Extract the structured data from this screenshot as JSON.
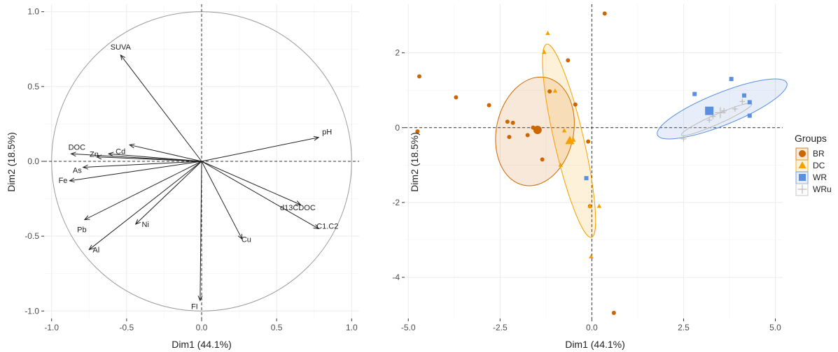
{
  "chart_data": [
    {
      "type": "scatter",
      "subtype": "pca-variable-correlation-circle",
      "xlabel": "Dim1 (44.1%)",
      "ylabel": "Dim2 (18.5%)",
      "xlim": [
        -1.05,
        1.05
      ],
      "ylim": [
        -1.05,
        1.05
      ],
      "xticks": [
        -1.0,
        -0.5,
        0.0,
        0.5,
        1.0
      ],
      "yticks": [
        -1.0,
        -0.5,
        0.0,
        0.5,
        1.0
      ],
      "xtick_labels": [
        "-1.0",
        "-0.5",
        "0.0",
        "0.5",
        "1.0"
      ],
      "ytick_labels": [
        "-1.0",
        "-0.5",
        "0.0",
        "0.5",
        "1.0"
      ],
      "grid": true,
      "unit_circle": true,
      "vectors": [
        {
          "name": "SUVA",
          "x": -0.54,
          "y": 0.71
        },
        {
          "name": "pH",
          "x": 0.78,
          "y": 0.16
        },
        {
          "name": "DOC",
          "x": -0.87,
          "y": 0.05
        },
        {
          "name": "Cd",
          "x": -0.62,
          "y": 0.05
        },
        {
          "name": "Zn",
          "x": -0.7,
          "y": 0.03
        },
        {
          "name": "As",
          "x": -0.79,
          "y": -0.04
        },
        {
          "name": "Fe",
          "x": -0.88,
          "y": -0.13
        },
        {
          "name": "Pb",
          "x": -0.78,
          "y": -0.39
        },
        {
          "name": "Ni",
          "x": -0.44,
          "y": -0.42
        },
        {
          "name": "Al",
          "x": -0.75,
          "y": -0.59
        },
        {
          "name": "FI",
          "x": -0.01,
          "y": -0.93
        },
        {
          "name": "Cu",
          "x": 0.27,
          "y": -0.52
        },
        {
          "name": "d13CDOC",
          "x": 0.66,
          "y": -0.29
        },
        {
          "name": "C1.C2",
          "x": 0.78,
          "y": -0.45
        }
      ],
      "extra_arrow": {
        "x": -0.48,
        "y": 0.11
      }
    },
    {
      "type": "scatter",
      "subtype": "pca-individuals",
      "xlabel": "Dim1 (44.1%)",
      "ylabel": "Dim2 (18.5%)",
      "xlim": [
        -5.1,
        5.2
      ],
      "ylim": [
        -5.1,
        3.3
      ],
      "xticks": [
        -5.0,
        -2.5,
        0.0,
        2.5,
        5.0
      ],
      "yticks": [
        -4,
        -2,
        0,
        2
      ],
      "xtick_labels": [
        "-5.0",
        "-2.5",
        "0.0",
        "2.5",
        "5.0"
      ],
      "ytick_labels": [
        "-4",
        "-2",
        "0",
        "2"
      ],
      "grid": true,
      "legend": {
        "title": "Groups",
        "position": "right"
      },
      "series": [
        {
          "name": "BR",
          "color": "#CC6600",
          "marker": "circle",
          "points": [
            [
              -4.7,
              1.37
            ],
            [
              -4.75,
              -0.1
            ],
            [
              -3.7,
              0.81
            ],
            [
              -2.8,
              0.6
            ],
            [
              -2.3,
              0.16
            ],
            [
              -2.15,
              0.13
            ],
            [
              -2.25,
              -0.25
            ],
            [
              -1.75,
              -0.2
            ],
            [
              -1.6,
              0.0
            ],
            [
              -1.35,
              -0.85
            ],
            [
              -1.15,
              0.97
            ],
            [
              -0.65,
              1.8
            ],
            [
              -0.45,
              0.62
            ],
            [
              -0.1,
              -0.37
            ],
            [
              -0.05,
              -2.1
            ],
            [
              0.35,
              3.05
            ],
            [
              0.6,
              -4.95
            ]
          ],
          "centroid": [
            -1.48,
            -0.06
          ],
          "ellipse": {
            "cx": -1.55,
            "cy": -0.1,
            "rx": 1.05,
            "ry": 1.47,
            "angle": 12
          }
        },
        {
          "name": "DC",
          "color": "#F5A000",
          "marker": "triangle",
          "points": [
            [
              -1.2,
              2.52
            ],
            [
              -1.3,
              2.02
            ],
            [
              -1.0,
              0.98
            ],
            [
              -0.75,
              -0.08
            ],
            [
              -0.5,
              -0.33
            ],
            [
              -0.85,
              -1.0
            ],
            [
              -0.05,
              -2.1
            ],
            [
              0.2,
              -2.1
            ],
            [
              -0.02,
              -3.45
            ]
          ],
          "centroid": [
            -0.6,
            -0.35
          ],
          "ellipse": {
            "cx": -0.62,
            "cy": -0.35,
            "rx": 0.4,
            "ry": 2.65,
            "angle": -13
          }
        },
        {
          "name": "WR",
          "color": "#5B8FE0",
          "marker": "square",
          "points": [
            [
              2.8,
              0.9
            ],
            [
              3.8,
              1.3
            ],
            [
              4.15,
              0.86
            ],
            [
              4.3,
              0.68
            ],
            [
              4.3,
              0.32
            ],
            [
              -0.15,
              -1.35
            ]
          ],
          "centroid": [
            3.2,
            0.45
          ],
          "ellipse": {
            "cx": 3.55,
            "cy": 0.5,
            "rx": 1.9,
            "ry": 0.43,
            "angle": -22
          }
        },
        {
          "name": "WRu",
          "color": "#BBBBBB",
          "marker": "plus",
          "points": [
            [
              2.5,
              -0.3
            ],
            [
              3.2,
              0.2
            ],
            [
              3.9,
              0.5
            ],
            [
              4.1,
              0.7
            ],
            [
              3.6,
              0.45
            ],
            [
              3.3,
              0.3
            ]
          ],
          "centroid": [
            3.5,
            0.4
          ],
          "ellipse": {
            "cx": 3.4,
            "cy": 0.22,
            "rx": 1.05,
            "ry": 0.13,
            "angle": -24
          }
        }
      ]
    }
  ]
}
